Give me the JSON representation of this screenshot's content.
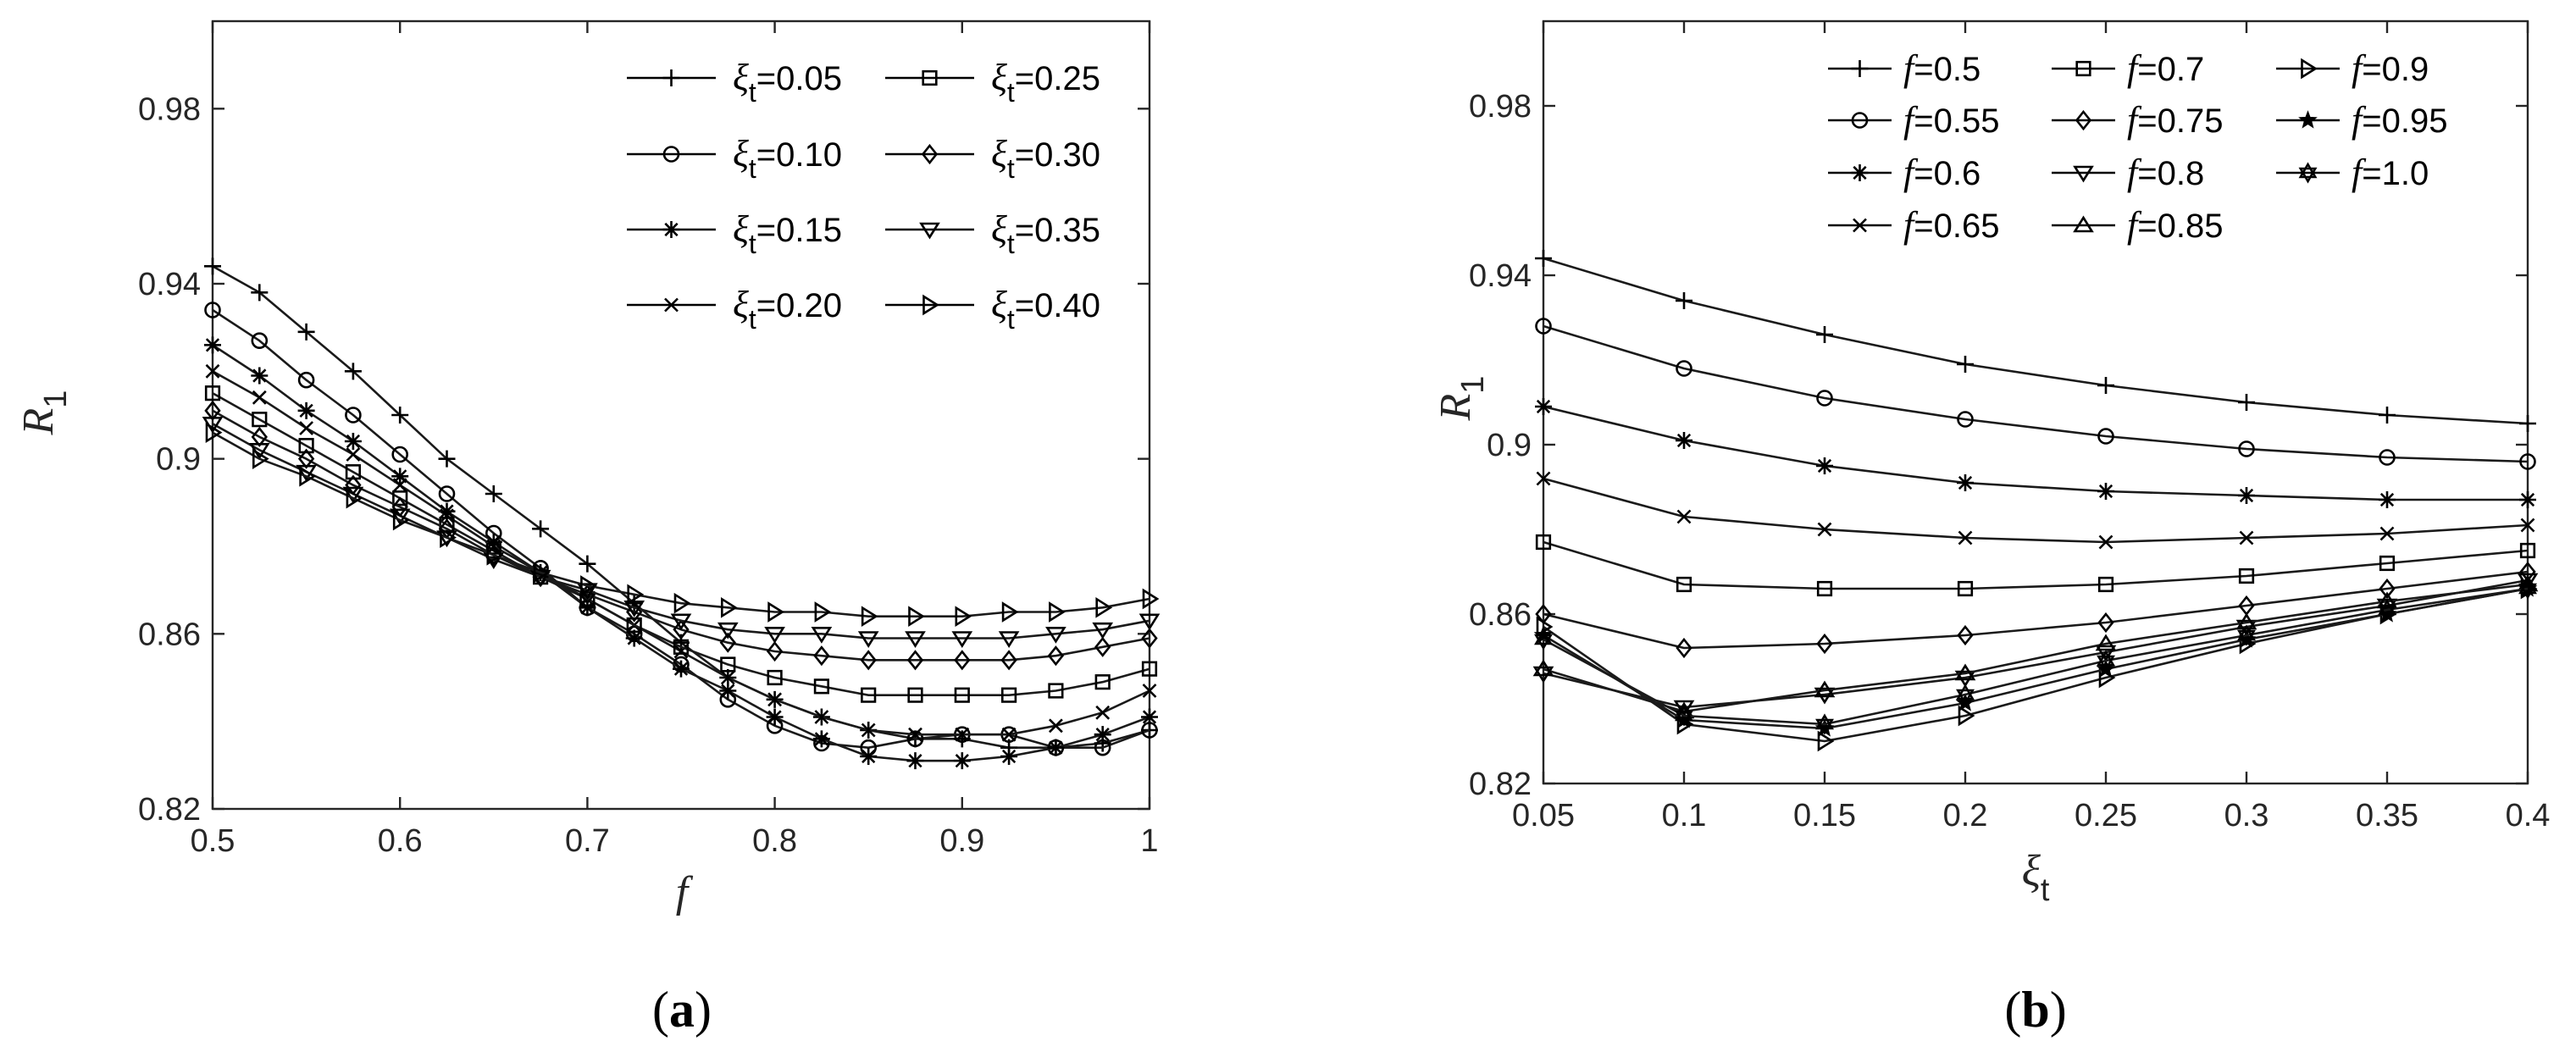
{
  "chart_data": [
    {
      "type": "line",
      "panel": "a",
      "caption": "(a)",
      "caption_letter": "a",
      "xlabel": "f",
      "ylabel": "R",
      "ylabel_sub": "1",
      "xlim": [
        0.5,
        1.0
      ],
      "ylim": [
        0.82,
        1.0
      ],
      "xticks": [
        "0.5",
        "0.6",
        "0.7",
        "0.8",
        "0.9",
        "1"
      ],
      "xtick_values": [
        0.5,
        0.6,
        0.7,
        0.8,
        0.9,
        1.0
      ],
      "yticks": [
        "0.82",
        "0.86",
        "0.9",
        "0.94",
        "0.98"
      ],
      "ytick_values": [
        0.82,
        0.86,
        0.9,
        0.94,
        0.98
      ],
      "legend_location": "top-right",
      "legend_columns": 2,
      "legend_order": [
        0,
        4,
        1,
        5,
        2,
        6,
        3,
        7
      ],
      "x": [
        0.5,
        0.525,
        0.55,
        0.575,
        0.6,
        0.625,
        0.65,
        0.675,
        0.7,
        0.725,
        0.75,
        0.775,
        0.8,
        0.825,
        0.85,
        0.875,
        0.9,
        0.925,
        0.95,
        0.975,
        1.0
      ],
      "series": [
        {
          "name": "ξt=0.05",
          "sym": "ξ",
          "sub": "t",
          "value_text": "=0.05",
          "marker": "plus",
          "values": [
            0.944,
            0.938,
            0.929,
            0.92,
            0.91,
            0.9,
            0.892,
            0.884,
            0.876,
            0.867,
            0.858,
            0.85,
            0.845,
            0.841,
            0.838,
            0.836,
            0.836,
            0.834,
            0.834,
            0.835,
            0.838
          ]
        },
        {
          "name": "ξt=0.10",
          "sym": "ξ",
          "sub": "t",
          "value_text": "=0.10",
          "marker": "circle",
          "values": [
            0.934,
            0.927,
            0.918,
            0.91,
            0.901,
            0.892,
            0.883,
            0.875,
            0.866,
            0.86,
            0.853,
            0.845,
            0.839,
            0.835,
            0.834,
            0.836,
            0.837,
            0.837,
            0.834,
            0.834,
            0.838
          ]
        },
        {
          "name": "ξt=0.15",
          "sym": "ξ",
          "sub": "t",
          "value_text": "=0.15",
          "marker": "asterisk",
          "values": [
            0.926,
            0.919,
            0.911,
            0.904,
            0.896,
            0.888,
            0.881,
            0.874,
            0.866,
            0.859,
            0.852,
            0.847,
            0.841,
            0.836,
            0.832,
            0.831,
            0.831,
            0.832,
            0.834,
            0.837,
            0.841
          ]
        },
        {
          "name": "ξt=0.20",
          "sym": "ξ",
          "sub": "t",
          "value_text": "=0.20",
          "marker": "cross",
          "values": [
            0.92,
            0.914,
            0.907,
            0.901,
            0.894,
            0.887,
            0.88,
            0.874,
            0.868,
            0.862,
            0.856,
            0.85,
            0.845,
            0.841,
            0.838,
            0.837,
            0.837,
            0.837,
            0.839,
            0.842,
            0.847
          ]
        },
        {
          "name": "ξt=0.25",
          "sym": "ξ",
          "sub": "t",
          "value_text": "=0.25",
          "marker": "square",
          "values": [
            0.915,
            0.909,
            0.903,
            0.897,
            0.891,
            0.885,
            0.879,
            0.873,
            0.868,
            0.862,
            0.857,
            0.853,
            0.85,
            0.848,
            0.846,
            0.846,
            0.846,
            0.846,
            0.847,
            0.849,
            0.852
          ]
        },
        {
          "name": "ξt=0.30",
          "sym": "ξ",
          "sub": "t",
          "value_text": "=0.30",
          "marker": "diamond",
          "values": [
            0.911,
            0.905,
            0.9,
            0.894,
            0.889,
            0.884,
            0.878,
            0.873,
            0.869,
            0.865,
            0.861,
            0.858,
            0.856,
            0.855,
            0.854,
            0.854,
            0.854,
            0.854,
            0.855,
            0.857,
            0.859
          ]
        },
        {
          "name": "ξt=0.35",
          "sym": "ξ",
          "sub": "t",
          "value_text": "=0.35",
          "marker": "tri-down",
          "values": [
            0.908,
            0.902,
            0.897,
            0.892,
            0.887,
            0.882,
            0.877,
            0.873,
            0.87,
            0.866,
            0.863,
            0.861,
            0.86,
            0.86,
            0.859,
            0.859,
            0.859,
            0.859,
            0.86,
            0.861,
            0.863
          ]
        },
        {
          "name": "ξt=0.40",
          "sym": "ξ",
          "sub": "t",
          "value_text": "=0.40",
          "marker": "tri-right",
          "values": [
            0.906,
            0.9,
            0.896,
            0.891,
            0.886,
            0.882,
            0.878,
            0.874,
            0.871,
            0.869,
            0.867,
            0.866,
            0.865,
            0.865,
            0.864,
            0.864,
            0.864,
            0.865,
            0.865,
            0.866,
            0.868
          ]
        }
      ]
    },
    {
      "type": "line",
      "panel": "b",
      "caption": "(b)",
      "caption_letter": "b",
      "xlabel": "ξ",
      "xlabel_sub": "t",
      "ylabel": "R",
      "ylabel_sub": "1",
      "xlim": [
        0.05,
        0.4
      ],
      "ylim": [
        0.82,
        1.0
      ],
      "xticks": [
        "0.05",
        "0.1",
        "0.15",
        "0.2",
        "0.25",
        "0.3",
        "0.35",
        "0.4"
      ],
      "xtick_values": [
        0.05,
        0.1,
        0.15,
        0.2,
        0.25,
        0.3,
        0.35,
        0.4
      ],
      "yticks": [
        "0.82",
        "0.86",
        "0.9",
        "0.94",
        "0.98"
      ],
      "ytick_values": [
        0.82,
        0.86,
        0.9,
        0.94,
        0.98
      ],
      "legend_location": "top",
      "legend_columns": 3,
      "legend_order": [
        0,
        4,
        8,
        1,
        5,
        9,
        2,
        6,
        10,
        3,
        7
      ],
      "x": [
        0.05,
        0.1,
        0.15,
        0.2,
        0.25,
        0.3,
        0.35,
        0.4
      ],
      "series": [
        {
          "name": "f=0.5",
          "sym": "f",
          "value_text": "=0.5",
          "marker": "plus",
          "values": [
            0.944,
            0.934,
            0.926,
            0.919,
            0.914,
            0.91,
            0.907,
            0.905
          ]
        },
        {
          "name": "f=0.55",
          "sym": "f",
          "value_text": "=0.55",
          "marker": "circle",
          "values": [
            0.928,
            0.918,
            0.911,
            0.906,
            0.902,
            0.899,
            0.897,
            0.896
          ]
        },
        {
          "name": "f=0.6",
          "sym": "f",
          "value_text": "=0.6",
          "marker": "asterisk",
          "values": [
            0.909,
            0.901,
            0.895,
            0.891,
            0.889,
            0.888,
            0.887,
            0.887
          ]
        },
        {
          "name": "f=0.65",
          "sym": "f",
          "value_text": "=0.65",
          "marker": "cross",
          "values": [
            0.892,
            0.883,
            0.88,
            0.878,
            0.877,
            0.878,
            0.879,
            0.881
          ]
        },
        {
          "name": "f=0.7",
          "sym": "f",
          "value_text": "=0.7",
          "marker": "square",
          "values": [
            0.877,
            0.867,
            0.866,
            0.866,
            0.867,
            0.869,
            0.872,
            0.875
          ]
        },
        {
          "name": "f=0.75",
          "sym": "f",
          "value_text": "=0.75",
          "marker": "diamond",
          "values": [
            0.86,
            0.852,
            0.853,
            0.855,
            0.858,
            0.862,
            0.866,
            0.87
          ]
        },
        {
          "name": "f=0.8",
          "sym": "f",
          "value_text": "=0.8",
          "marker": "tri-down",
          "values": [
            0.846,
            0.838,
            0.841,
            0.845,
            0.851,
            0.857,
            0.862,
            0.868
          ]
        },
        {
          "name": "f=0.85",
          "sym": "f",
          "value_text": "=0.85",
          "marker": "tri-up",
          "values": [
            0.847,
            0.837,
            0.842,
            0.846,
            0.853,
            0.858,
            0.863,
            0.867
          ]
        },
        {
          "name": "f=0.9",
          "sym": "f",
          "value_text": "=0.9",
          "marker": "tri-right",
          "values": [
            0.857,
            0.834,
            0.83,
            0.836,
            0.845,
            0.853,
            0.86,
            0.866
          ]
        },
        {
          "name": "f=0.95",
          "sym": "f",
          "value_text": "=0.95",
          "marker": "star",
          "values": [
            0.855,
            0.835,
            0.833,
            0.839,
            0.847,
            0.854,
            0.86,
            0.866
          ]
        },
        {
          "name": "f=1.0",
          "sym": "f",
          "value_text": "=1.0",
          "marker": "hexstar",
          "values": [
            0.854,
            0.836,
            0.834,
            0.841,
            0.849,
            0.855,
            0.861,
            0.866
          ]
        }
      ]
    }
  ]
}
